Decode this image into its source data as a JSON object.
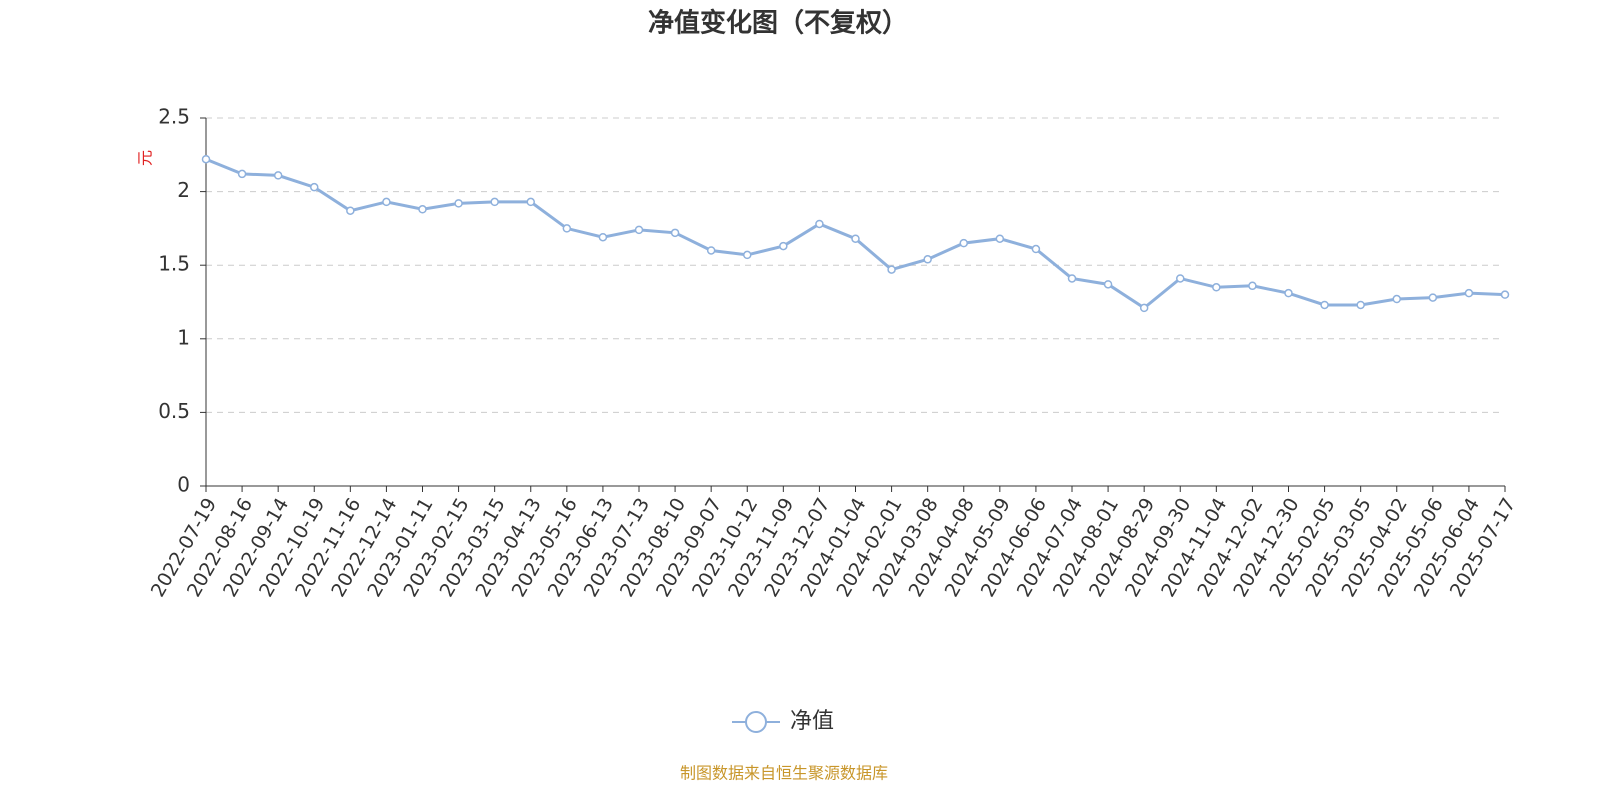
{
  "chart_data": {
    "type": "line",
    "title": "净值变化图（不复权）",
    "y_label": "元",
    "categories": [
      "2022-07-19",
      "2022-08-16",
      "2022-09-14",
      "2022-10-19",
      "2022-11-16",
      "2022-12-14",
      "2023-01-11",
      "2023-02-15",
      "2023-03-15",
      "2023-04-13",
      "2023-05-16",
      "2023-06-13",
      "2023-07-13",
      "2023-08-10",
      "2023-09-07",
      "2023-10-12",
      "2023-11-09",
      "2023-12-07",
      "2024-01-04",
      "2024-02-01",
      "2024-03-08",
      "2024-04-08",
      "2024-05-09",
      "2024-06-06",
      "2024-07-04",
      "2024-08-01",
      "2024-08-29",
      "2024-09-30",
      "2024-11-04",
      "2024-12-02",
      "2024-12-30",
      "2025-02-05",
      "2025-03-05",
      "2025-04-02",
      "2025-05-06",
      "2025-06-04",
      "2025-07-17"
    ],
    "series": [
      {
        "name": "净值",
        "color": "#8eb0dc",
        "values": [
          2.22,
          2.12,
          2.11,
          2.03,
          1.87,
          1.93,
          1.88,
          1.92,
          1.93,
          1.93,
          1.75,
          1.69,
          1.74,
          1.72,
          1.6,
          1.57,
          1.63,
          1.78,
          1.68,
          1.47,
          1.54,
          1.65,
          1.68,
          1.61,
          1.41,
          1.37,
          1.21,
          1.41,
          1.35,
          1.36,
          1.31,
          1.23,
          1.23,
          1.27,
          1.28,
          1.31,
          1.3
        ]
      }
    ],
    "ylim": [
      0,
      2.5
    ],
    "yticks": [
      0,
      0.5,
      1,
      1.5,
      2,
      2.5
    ],
    "grid": true,
    "source": "制图数据来自恒生聚源数据库"
  }
}
